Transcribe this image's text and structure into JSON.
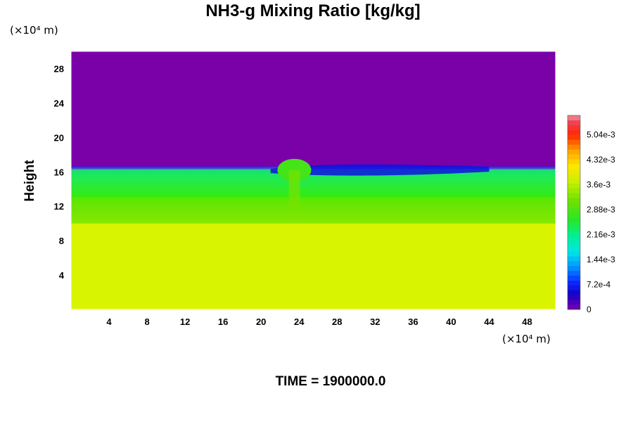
{
  "chart_data": {
    "type": "heatmap",
    "title": "NH3-g Mixing Ratio [kg/kg]",
    "ylabel": "Height",
    "xlabel": "",
    "x_unit": "(×10⁴ m)",
    "y_unit": "(×10⁴ m)",
    "time_label": "TIME = 1900000.0",
    "xlim": [
      0,
      51
    ],
    "ylim": [
      0,
      30
    ],
    "x_ticks": [
      "4",
      "8",
      "12",
      "16",
      "20",
      "24",
      "28",
      "32",
      "36",
      "40",
      "44",
      "48"
    ],
    "y_ticks": [
      "4",
      "8",
      "12",
      "16",
      "20",
      "24",
      "28"
    ],
    "colorbar": {
      "range": [
        0,
        0.0056
      ],
      "tick_labels": [
        "0",
        "7.2e-4",
        "1.44e-3",
        "2.16e-3",
        "2.88e-3",
        "3.6e-3",
        "4.32e-3",
        "5.04e-3"
      ]
    },
    "field_layers": [
      {
        "from_height": 0,
        "to_height": 10,
        "value": 0.0039
      },
      {
        "from_height": 10,
        "to_height": 13,
        "value": 0.0031
      },
      {
        "from_height": 13,
        "to_height": 16.3,
        "value": 0.0026
      },
      {
        "from_height": 16.3,
        "to_height": 30,
        "value": 0.0
      }
    ],
    "features": [
      {
        "label": "overshooting plume",
        "x": 23.5,
        "height": 16.2,
        "value": 0.0028
      },
      {
        "label": "depleted layer",
        "x_range": [
          21,
          44
        ],
        "height": 16.5,
        "value": 0.0006
      }
    ]
  }
}
